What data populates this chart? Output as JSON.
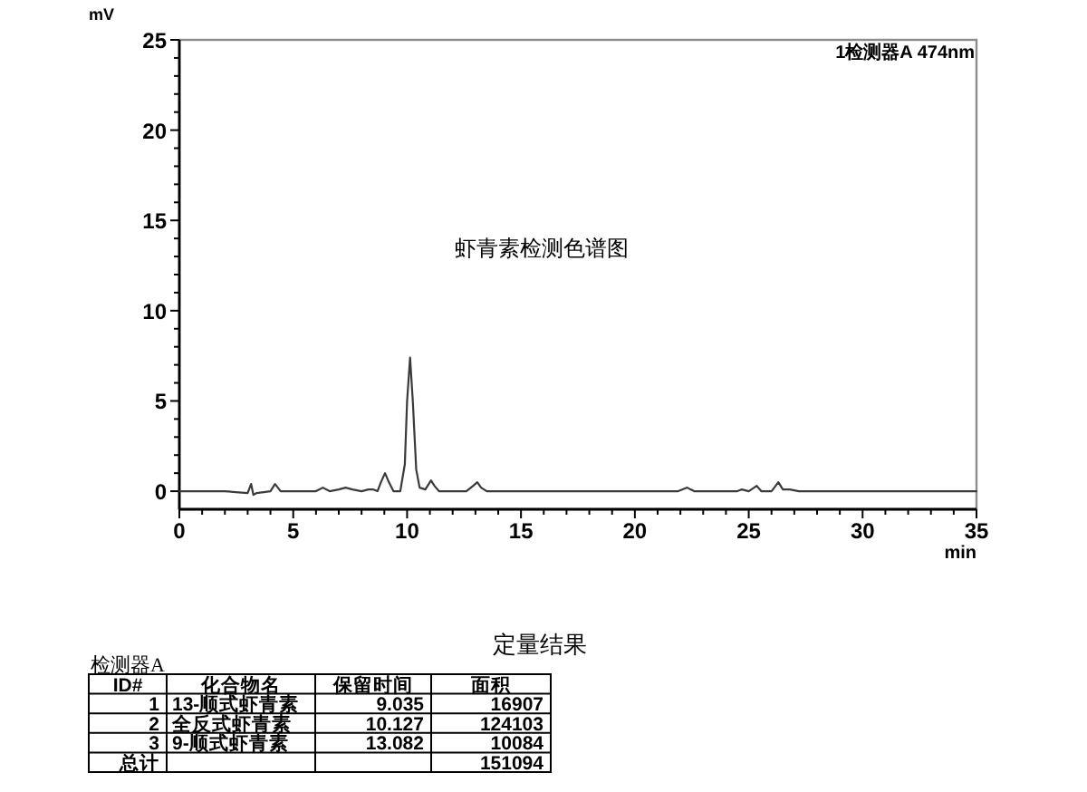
{
  "chart_data": [
    {
      "type": "line",
      "title": "虾青素检测色谱图",
      "xlabel": "min",
      "ylabel": "mV",
      "annotations": [
        "1检测器A 474nm"
      ],
      "color": "#3a3a3a",
      "x": [
        0,
        1,
        2,
        3.0,
        3.15,
        3.25,
        3.4,
        4.0,
        4.2,
        4.45,
        5.0,
        5.5,
        6.0,
        6.3,
        6.6,
        7.0,
        7.3,
        7.6,
        8.0,
        8.3,
        8.5,
        8.7,
        8.85,
        9.03,
        9.2,
        9.4,
        9.7,
        9.9,
        10.0,
        10.13,
        10.25,
        10.4,
        10.55,
        10.8,
        10.95,
        11.05,
        11.2,
        11.4,
        12.0,
        12.6,
        12.9,
        13.08,
        13.25,
        13.5,
        14,
        15,
        16,
        17,
        18,
        19,
        20,
        21,
        21.9,
        22.3,
        22.6,
        23,
        24,
        24.5,
        24.7,
        25.0,
        25.35,
        25.55,
        26.0,
        26.3,
        26.5,
        26.8,
        27.2,
        28,
        29,
        30,
        31,
        32,
        33,
        34,
        35
      ],
      "values": [
        0.0,
        0.0,
        0.0,
        -0.1,
        0.4,
        -0.2,
        -0.1,
        0.0,
        0.4,
        0.0,
        0.0,
        0.0,
        0.0,
        0.2,
        0.0,
        0.1,
        0.2,
        0.1,
        0.0,
        0.1,
        0.1,
        0.0,
        0.5,
        1.0,
        0.5,
        0.0,
        0.0,
        1.5,
        5.0,
        7.4,
        5.0,
        1.2,
        0.2,
        0.1,
        0.4,
        0.6,
        0.3,
        0.0,
        0.0,
        0.0,
        0.3,
        0.5,
        0.2,
        0.0,
        0.0,
        0.0,
        0.0,
        0.0,
        0.0,
        0.0,
        0.0,
        0.0,
        0.0,
        0.2,
        0.0,
        0.0,
        0.0,
        0.0,
        0.1,
        0.0,
        0.3,
        0.0,
        0.0,
        0.5,
        0.1,
        0.1,
        0.0,
        0.0,
        0.0,
        0.0,
        0.0,
        0.0,
        0.0,
        0.0,
        0.0
      ],
      "xlim": [
        0,
        35
      ],
      "ylim": [
        -1,
        25
      ],
      "xticks": [
        0,
        {
          "value": 1,
          "label": null
        },
        {
          "value": 2,
          "label": null
        },
        {
          "value": 3,
          "label": null
        },
        {
          "value": 4,
          "label": null
        },
        5,
        {
          "value": 6,
          "label": null
        },
        {
          "value": 7,
          "label": null
        },
        {
          "value": 8,
          "label": null
        },
        {
          "value": 9,
          "label": null
        },
        10,
        {
          "value": 11,
          "label": null
        },
        {
          "value": 12,
          "label": null
        },
        {
          "value": 13,
          "label": null
        },
        {
          "value": 14,
          "label": null
        },
        15,
        {
          "value": 16,
          "label": null
        },
        {
          "value": 17,
          "label": null
        },
        {
          "value": 18,
          "label": null
        },
        {
          "value": 19,
          "label": null
        },
        20,
        {
          "value": 21,
          "label": null
        },
        {
          "value": 22,
          "label": null
        },
        {
          "value": 23,
          "label": null
        },
        {
          "value": 24,
          "label": null
        },
        25,
        {
          "value": 26,
          "label": null
        },
        {
          "value": 27,
          "label": null
        },
        {
          "value": 28,
          "label": null
        },
        {
          "value": 29,
          "label": null
        },
        30,
        {
          "value": 31,
          "label": null
        },
        {
          "value": 32,
          "label": null
        },
        {
          "value": 33,
          "label": null
        },
        {
          "value": 34,
          "label": null
        },
        35
      ],
      "yticks": [
        0,
        {
          "value": 1,
          "label": null
        },
        {
          "value": 2,
          "label": null
        },
        {
          "value": 3,
          "label": null
        },
        {
          "value": 4,
          "label": null
        },
        5,
        {
          "value": 6,
          "label": null
        },
        {
          "value": 7,
          "label": null
        },
        {
          "value": 8,
          "label": null
        },
        {
          "value": 9,
          "label": null
        },
        10,
        {
          "value": 11,
          "label": null
        },
        {
          "value": 12,
          "label": null
        },
        {
          "value": 13,
          "label": null
        },
        {
          "value": 14,
          "label": null
        },
        15,
        {
          "value": 16,
          "label": null
        },
        {
          "value": 17,
          "label": null
        },
        {
          "value": 18,
          "label": null
        },
        {
          "value": 19,
          "label": null
        },
        20,
        {
          "value": 21,
          "label": null
        },
        {
          "value": 22,
          "label": null
        },
        {
          "value": 23,
          "label": null
        },
        {
          "value": 24,
          "label": null
        },
        25
      ]
    },
    {
      "type": "other",
      "title": "定量结果",
      "subtitle": "检测器A",
      "categories": [
        "ID#",
        "化合物名",
        "保留时间",
        "面积"
      ],
      "cell_labels": [
        [
          "1",
          "13-顺式虾青素",
          "9.035",
          "16907"
        ],
        [
          "2",
          "全反式虾青素",
          "10.127",
          "124103"
        ],
        [
          "3",
          "9-顺式虾青素",
          "13.082",
          "10084"
        ],
        [
          "总计",
          null,
          null,
          "151094"
        ]
      ]
    }
  ]
}
